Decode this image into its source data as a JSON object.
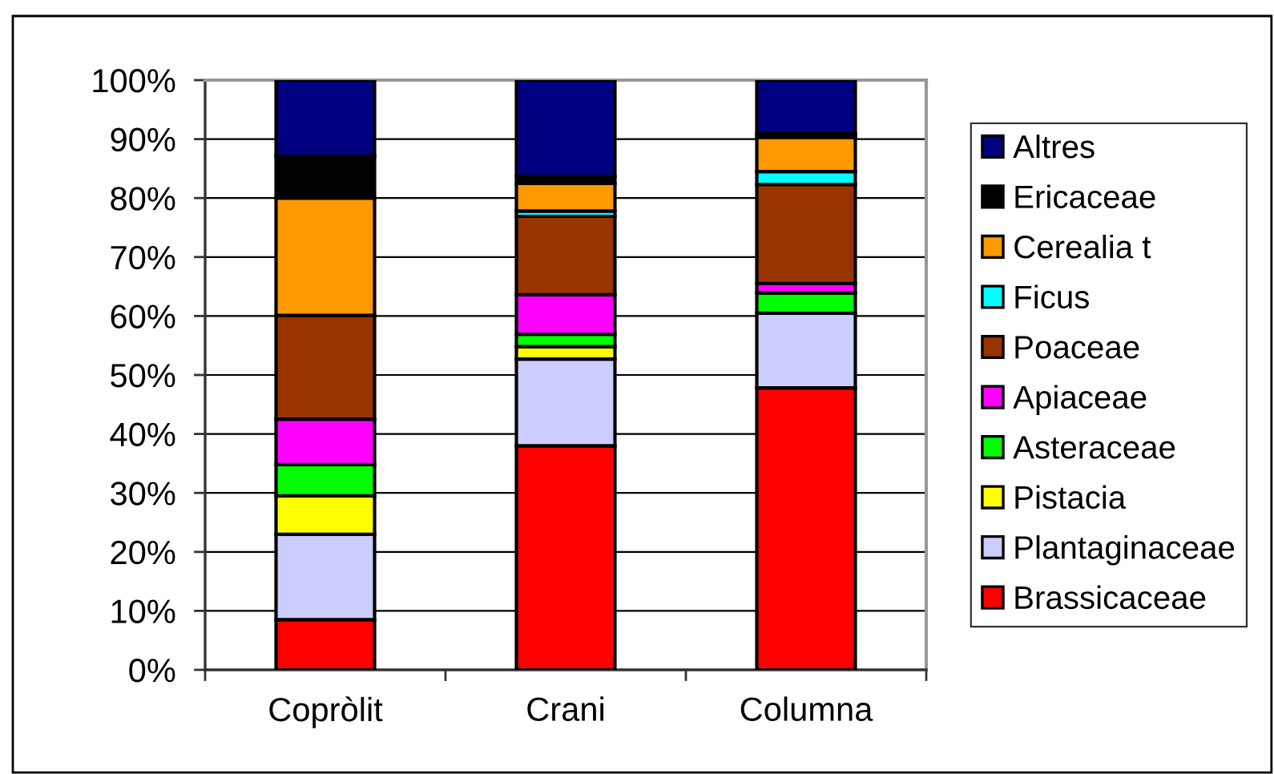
{
  "chart_data": {
    "type": "bar",
    "stacked": true,
    "categories": [
      "Copròlit",
      "Crani",
      "Columna"
    ],
    "series": [
      {
        "name": "Brassicaceae",
        "color": "#ff0000",
        "values": [
          8.5,
          38.0,
          47.8
        ]
      },
      {
        "name": "Plantaginaceae",
        "color": "#ccccff",
        "values": [
          14.5,
          14.7,
          12.7
        ]
      },
      {
        "name": "Pistacia",
        "color": "#ffff00",
        "values": [
          6.5,
          2.1,
          0
        ]
      },
      {
        "name": "Asteraceae",
        "color": "#00ff00",
        "values": [
          5.3,
          2.1,
          3.4
        ]
      },
      {
        "name": "Apiaceae",
        "color": "#ff00ff",
        "values": [
          7.7,
          6.7,
          1.6
        ]
      },
      {
        "name": "Poaceae",
        "color": "#993300",
        "values": [
          17.6,
          13.3,
          16.8
        ]
      },
      {
        "name": "Ficus",
        "color": "#00ffff",
        "values": [
          0,
          0.9,
          2.2
        ]
      },
      {
        "name": "Cerealia t",
        "color": "#ff9900",
        "values": [
          19.9,
          4.7,
          5.8
        ]
      },
      {
        "name": "Ericaceae",
        "color": "#000000",
        "values": [
          7.1,
          1.2,
          0.6
        ]
      },
      {
        "name": "Altres",
        "color": "#000080",
        "values": [
          12.9,
          16.3,
          9.1
        ]
      }
    ],
    "ylim": [
      0,
      100
    ],
    "yticks": [
      {
        "value": 0,
        "label": "0%"
      },
      {
        "value": 10,
        "label": "10%"
      },
      {
        "value": 20,
        "label": "20%"
      },
      {
        "value": 30,
        "label": "30%"
      },
      {
        "value": 40,
        "label": "40%"
      },
      {
        "value": 50,
        "label": "50%"
      },
      {
        "value": 60,
        "label": "60%"
      },
      {
        "value": 70,
        "label": "70%"
      },
      {
        "value": 80,
        "label": "80%"
      },
      {
        "value": 90,
        "label": "90%"
      },
      {
        "value": 100,
        "label": "100%"
      }
    ],
    "grid": "y",
    "legend": "right"
  }
}
